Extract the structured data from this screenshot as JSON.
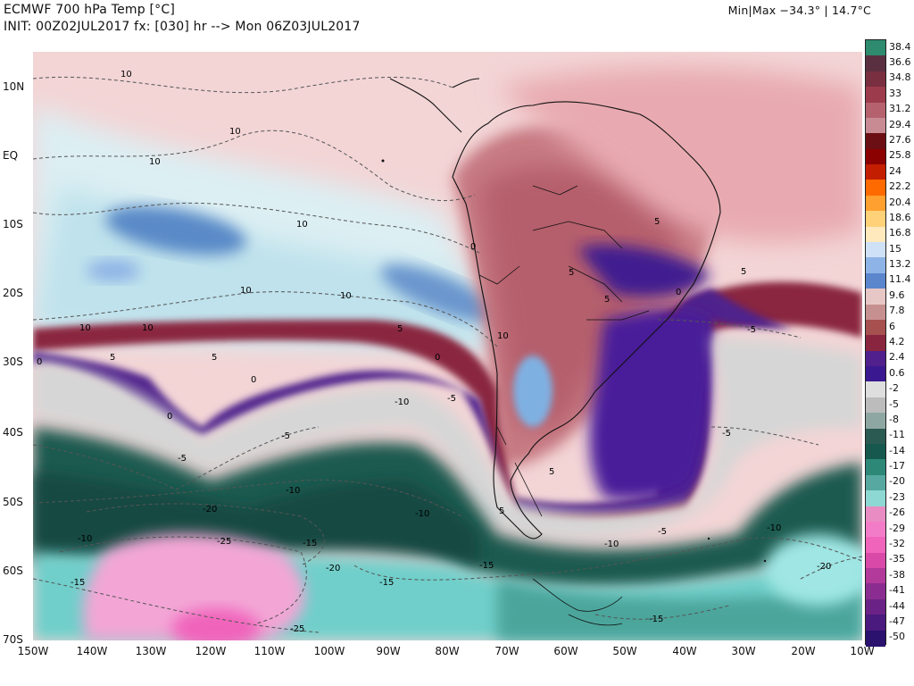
{
  "header": {
    "title": "ECMWF 700 hPa Temp [°C]",
    "init_line": "INIT: 00Z02JUL2017 fx: [030] hr --> Mon 06Z03JUL2017",
    "minmax": "Min|Max −34.3° | 14.7°C"
  },
  "lat_labels": [
    "10N",
    "EQ",
    "10S",
    "20S",
    "30S",
    "40S",
    "50S",
    "60S",
    "70S"
  ],
  "lon_labels": [
    "150W",
    "140W",
    "130W",
    "120W",
    "110W",
    "100W",
    "90W",
    "80W",
    "70W",
    "60W",
    "50W",
    "40W",
    "30W",
    "20W",
    "10W"
  ],
  "colorbar": {
    "ticks": [
      "38.4",
      "36.6",
      "34.8",
      "33",
      "31.2",
      "29.4",
      "27.6",
      "25.8",
      "24",
      "22.2",
      "20.4",
      "18.6",
      "16.8",
      "15",
      "13.2",
      "11.4",
      "9.6",
      "7.8",
      "6",
      "4.2",
      "2.4",
      "0.6",
      "-2",
      "-5",
      "-8",
      "-11",
      "-14",
      "-17",
      "-20",
      "-23",
      "-26",
      "-29",
      "-32",
      "-35",
      "-38",
      "-41",
      "-44",
      "-47",
      "-50"
    ],
    "colors": [
      "#2e8b6e",
      "#5a3040",
      "#7a2f40",
      "#9c3b4c",
      "#b5626e",
      "#c98b93",
      "#6b0f14",
      "#8b0000",
      "#c41e00",
      "#ff6a00",
      "#ffa030",
      "#ffd27a",
      "#ffe9bd",
      "#cfe1f7",
      "#8eb3e6",
      "#5b86cc",
      "#e7c6c6",
      "#c79090",
      "#a75050",
      "#8a2540",
      "#50208c",
      "#3a1890",
      "#dedede",
      "#bcbcbc",
      "#8fa7a3",
      "#2b5a52",
      "#16584e",
      "#2d8878",
      "#56a8a0",
      "#8ed8d4",
      "#e98cc4",
      "#f37cc8",
      "#f064bb",
      "#d94aa8",
      "#b23a9a",
      "#8b2d90",
      "#6a2286",
      "#4a1a7e",
      "#2a126e"
    ]
  },
  "contour_labels": [
    "10",
    "5",
    "0",
    "-5",
    "-10",
    "-15",
    "-20",
    "-25"
  ]
}
